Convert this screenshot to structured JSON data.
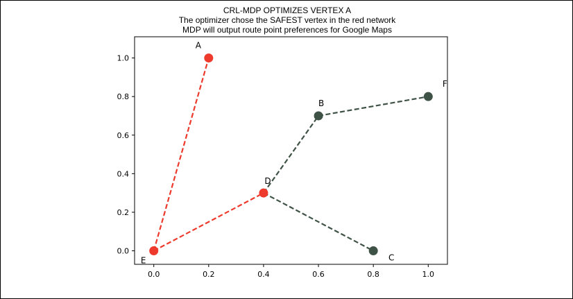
{
  "chart_data": {
    "type": "scatter",
    "title_lines": [
      "CRL-MDP OPTIMIZES VERTEX  A",
      "The optimizer chose the SAFEST vertex in the red network",
      "MDP will output route point preferences for Google Maps"
    ],
    "xlabel": "",
    "ylabel": "",
    "xlim": [
      -0.07,
      1.07
    ],
    "ylim": [
      -0.07,
      1.11
    ],
    "x_ticks": [
      0.0,
      0.2,
      0.4,
      0.6,
      0.8,
      1.0
    ],
    "x_tick_labels": [
      "0.0",
      "0.2",
      "0.4",
      "0.6",
      "0.8",
      "1.0"
    ],
    "y_ticks": [
      0.0,
      0.2,
      0.4,
      0.6,
      0.8,
      1.0
    ],
    "y_tick_labels": [
      "0.0",
      "0.2",
      "0.4",
      "0.6",
      "0.8",
      "1.0"
    ],
    "grid": false,
    "colors": {
      "red": "#ee3a2c",
      "dark": "#3f5246"
    },
    "nodes": [
      {
        "label": "A",
        "x": 0.2,
        "y": 1.0,
        "color": "red"
      },
      {
        "label": "B",
        "x": 0.6,
        "y": 0.7,
        "color": "dark"
      },
      {
        "label": "C",
        "x": 0.8,
        "y": 0.0,
        "color": "dark"
      },
      {
        "label": "D",
        "x": 0.4,
        "y": 0.3,
        "color": "red"
      },
      {
        "label": "E",
        "x": 0.0,
        "y": 0.0,
        "color": "red"
      },
      {
        "label": "F",
        "x": 1.0,
        "y": 0.8,
        "color": "dark"
      }
    ],
    "edges": [
      {
        "from": "E",
        "to": "A",
        "color": "red"
      },
      {
        "from": "E",
        "to": "D",
        "color": "red"
      },
      {
        "from": "D",
        "to": "B",
        "color": "dark"
      },
      {
        "from": "B",
        "to": "F",
        "color": "dark"
      },
      {
        "from": "D",
        "to": "C",
        "color": "dark"
      }
    ]
  }
}
